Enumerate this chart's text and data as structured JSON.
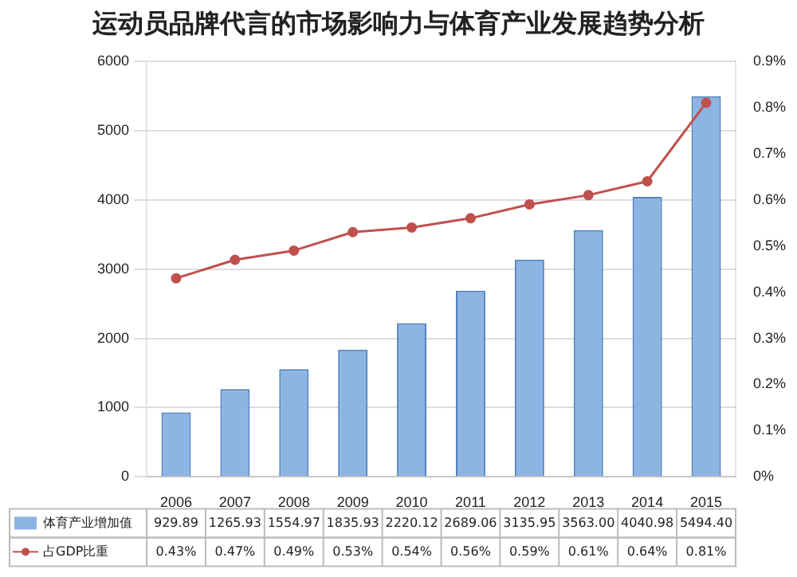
{
  "chart_data": {
    "type": "bar",
    "title": "运动员品牌代言的市场影响力与体育产业发展趋势分析",
    "categories": [
      "2006",
      "2007",
      "2008",
      "2009",
      "2010",
      "2011",
      "2012",
      "2013",
      "2014",
      "2015"
    ],
    "series": [
      {
        "name": "体育产业增加值",
        "color": "#8db4e2",
        "values": [
          929.89,
          1265.93,
          1554.97,
          1835.93,
          2220.12,
          2689.06,
          3135.95,
          3563.0,
          4040.98,
          5494.4
        ],
        "value_labels": [
          "929.89",
          "1265.93",
          "1554.97",
          "1835.93",
          "2220.12",
          "2689.06",
          "3135.95",
          "3563.00",
          "4040.98",
          "5494.40"
        ]
      },
      {
        "name": "占GDP比重",
        "type": "line",
        "axis": "y2",
        "color": "#c0504d",
        "values": [
          0.43,
          0.47,
          0.49,
          0.53,
          0.54,
          0.56,
          0.59,
          0.61,
          0.64,
          0.81
        ],
        "value_labels": [
          "0.43%",
          "0.47%",
          "0.49%",
          "0.53%",
          "0.54%",
          "0.56%",
          "0.59%",
          "0.61%",
          "0.64%",
          "0.81%"
        ]
      }
    ],
    "ylim": [
      0,
      6000
    ],
    "yticks": [
      0,
      1000,
      2000,
      3000,
      4000,
      5000,
      6000
    ],
    "y2lim": [
      0,
      0.9
    ],
    "y2ticks": [
      {
        "value": 0,
        "label": "0%"
      },
      {
        "value": 0.1,
        "label": "0.1%"
      },
      {
        "value": 0.2,
        "label": "0.2%"
      },
      {
        "value": 0.3,
        "label": "0.3%"
      },
      {
        "value": 0.4,
        "label": "0.4%"
      },
      {
        "value": 0.5,
        "label": "0.5%"
      },
      {
        "value": 0.6,
        "label": "0.6%"
      },
      {
        "value": 0.7,
        "label": "0.7%"
      },
      {
        "value": 0.8,
        "label": "0.8%"
      },
      {
        "value": 0.9,
        "label": "0.9%"
      }
    ],
    "grid": "y",
    "legend": "bottom",
    "marker": "circle",
    "line_style": "solid"
  }
}
